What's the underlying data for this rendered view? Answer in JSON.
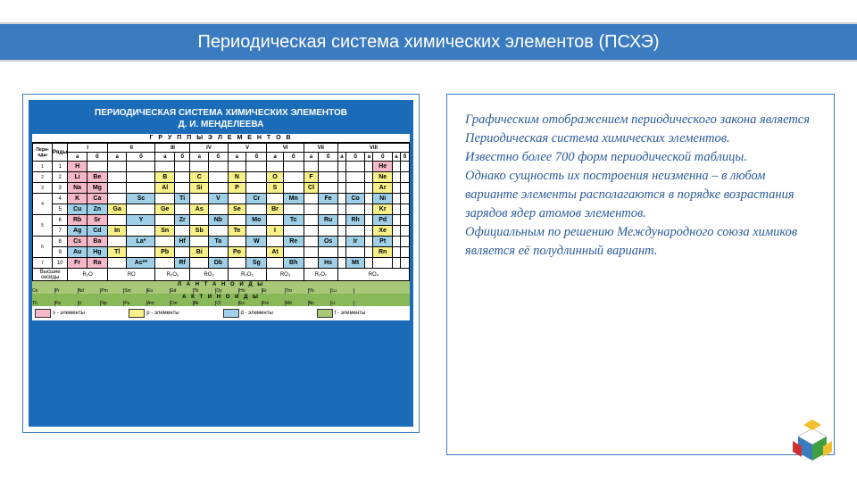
{
  "title": "Периодическая система химических элементов  (ПСХЭ)",
  "ptable": {
    "header_line1": "ПЕРИОДИЧЕСКАЯ СИСТЕМА ХИМИЧЕСКИХ ЭЛЕМЕНТОВ",
    "header_line2": "Д. И. МЕНДЕЛЕЕВА",
    "group_header": "Г Р У П П Ы   Э Л Е М Е Н Т О В",
    "period_label": "Пери-оды",
    "row_label": "Ряды",
    "groups": [
      "I",
      "II",
      "III",
      "IV",
      "V",
      "VI",
      "VII",
      "VIII"
    ],
    "sub": [
      "а",
      "б",
      "а",
      "б",
      "а",
      "б",
      "а",
      "б",
      "а",
      "б",
      "а",
      "б",
      "а",
      "б",
      "а",
      "б",
      "а",
      "б",
      "а",
      "б"
    ],
    "periods": [
      "1",
      "2",
      "3",
      "4",
      "5",
      "6",
      "7"
    ],
    "rows": [
      "1",
      "2",
      "3",
      "4",
      "5",
      "6",
      "7",
      "8",
      "9",
      "10"
    ],
    "colors": {
      "s": "#f5b8c8",
      "p": "#f8f088",
      "d": "#a0d0e8",
      "f": "#a8c878",
      "blank": "#ffffff"
    },
    "cells": [
      [
        [
          "H",
          "s"
        ],
        [
          "",
          "x"
        ],
        [
          "",
          "x"
        ],
        [
          "",
          "x"
        ],
        [
          "",
          "x"
        ],
        [
          "",
          "x"
        ],
        [
          "",
          "x"
        ],
        [
          "",
          "x"
        ],
        [
          "",
          "x"
        ],
        [
          "",
          "x"
        ],
        [
          "",
          "x"
        ],
        [
          "",
          "x"
        ],
        [
          "",
          "x"
        ],
        [
          "",
          "x"
        ],
        [
          "",
          "x"
        ],
        [
          "",
          "x"
        ],
        [
          "",
          "x"
        ],
        [
          "He",
          "s"
        ]
      ],
      [
        [
          "Li",
          "s"
        ],
        [
          "Be",
          "s"
        ],
        [
          "",
          "x"
        ],
        [
          "",
          "x"
        ],
        [
          "B",
          "p"
        ],
        [
          "",
          "x"
        ],
        [
          "C",
          "p"
        ],
        [
          "",
          "x"
        ],
        [
          "N",
          "p"
        ],
        [
          "",
          "x"
        ],
        [
          "O",
          "p"
        ],
        [
          "",
          "x"
        ],
        [
          "F",
          "p"
        ],
        [
          "",
          "x"
        ],
        [
          "",
          "x"
        ],
        [
          "",
          "x"
        ],
        [
          "",
          "x"
        ],
        [
          "Ne",
          "p"
        ]
      ],
      [
        [
          "Na",
          "s"
        ],
        [
          "Mg",
          "s"
        ],
        [
          "",
          "x"
        ],
        [
          "",
          "x"
        ],
        [
          "Al",
          "p"
        ],
        [
          "",
          "x"
        ],
        [
          "Si",
          "p"
        ],
        [
          "",
          "x"
        ],
        [
          "P",
          "p"
        ],
        [
          "",
          "x"
        ],
        [
          "S",
          "p"
        ],
        [
          "",
          "x"
        ],
        [
          "Cl",
          "p"
        ],
        [
          "",
          "x"
        ],
        [
          "",
          "x"
        ],
        [
          "",
          "x"
        ],
        [
          "",
          "x"
        ],
        [
          "Ar",
          "p"
        ]
      ],
      [
        [
          "K",
          "s"
        ],
        [
          "Ca",
          "s"
        ],
        [
          "",
          "x"
        ],
        [
          "Sc",
          "d"
        ],
        [
          "",
          "x"
        ],
        [
          "Ti",
          "d"
        ],
        [
          "",
          "x"
        ],
        [
          "V",
          "d"
        ],
        [
          "",
          "x"
        ],
        [
          "Cr",
          "d"
        ],
        [
          "",
          "x"
        ],
        [
          "Mn",
          "d"
        ],
        [
          "",
          "x"
        ],
        [
          "Fe",
          "d"
        ],
        [
          "",
          "x"
        ],
        [
          "Co",
          "d"
        ],
        [
          "",
          "x"
        ],
        [
          "Ni",
          "d"
        ]
      ],
      [
        [
          "Cu",
          "d"
        ],
        [
          "Zn",
          "d"
        ],
        [
          "Ga",
          "p"
        ],
        [
          "",
          "x"
        ],
        [
          "Ge",
          "p"
        ],
        [
          "",
          "x"
        ],
        [
          "As",
          "p"
        ],
        [
          "",
          "x"
        ],
        [
          "Se",
          "p"
        ],
        [
          "",
          "x"
        ],
        [
          "Br",
          "p"
        ],
        [
          "",
          "x"
        ],
        [
          "",
          "x"
        ],
        [
          "",
          "x"
        ],
        [
          "",
          "x"
        ],
        [
          "",
          "x"
        ],
        [
          "",
          "x"
        ],
        [
          "Kr",
          "p"
        ]
      ],
      [
        [
          "Rb",
          "s"
        ],
        [
          "Sr",
          "s"
        ],
        [
          "",
          "x"
        ],
        [
          "Y",
          "d"
        ],
        [
          "",
          "x"
        ],
        [
          "Zr",
          "d"
        ],
        [
          "",
          "x"
        ],
        [
          "Nb",
          "d"
        ],
        [
          "",
          "x"
        ],
        [
          "Mo",
          "d"
        ],
        [
          "",
          "x"
        ],
        [
          "Tc",
          "d"
        ],
        [
          "",
          "x"
        ],
        [
          "Ru",
          "d"
        ],
        [
          "",
          "x"
        ],
        [
          "Rh",
          "d"
        ],
        [
          "",
          "x"
        ],
        [
          "Pd",
          "d"
        ]
      ],
      [
        [
          "Ag",
          "d"
        ],
        [
          "Cd",
          "d"
        ],
        [
          "In",
          "p"
        ],
        [
          "",
          "x"
        ],
        [
          "Sn",
          "p"
        ],
        [
          "",
          "x"
        ],
        [
          "Sb",
          "p"
        ],
        [
          "",
          "x"
        ],
        [
          "Te",
          "p"
        ],
        [
          "",
          "x"
        ],
        [
          "I",
          "p"
        ],
        [
          "",
          "x"
        ],
        [
          "",
          "x"
        ],
        [
          "",
          "x"
        ],
        [
          "",
          "x"
        ],
        [
          "",
          "x"
        ],
        [
          "",
          "x"
        ],
        [
          "Xe",
          "p"
        ]
      ],
      [
        [
          "Cs",
          "s"
        ],
        [
          "Ba",
          "s"
        ],
        [
          "",
          "x"
        ],
        [
          "La*",
          "d"
        ],
        [
          "",
          "x"
        ],
        [
          "Hf",
          "d"
        ],
        [
          "",
          "x"
        ],
        [
          "Ta",
          "d"
        ],
        [
          "",
          "x"
        ],
        [
          "W",
          "d"
        ],
        [
          "",
          "x"
        ],
        [
          "Re",
          "d"
        ],
        [
          "",
          "x"
        ],
        [
          "Os",
          "d"
        ],
        [
          "",
          "x"
        ],
        [
          "Ir",
          "d"
        ],
        [
          "",
          "x"
        ],
        [
          "Pt",
          "d"
        ]
      ],
      [
        [
          "Au",
          "d"
        ],
        [
          "Hg",
          "d"
        ],
        [
          "Tl",
          "p"
        ],
        [
          "",
          "x"
        ],
        [
          "Pb",
          "p"
        ],
        [
          "",
          "x"
        ],
        [
          "Bi",
          "p"
        ],
        [
          "",
          "x"
        ],
        [
          "Po",
          "p"
        ],
        [
          "",
          "x"
        ],
        [
          "At",
          "p"
        ],
        [
          "",
          "x"
        ],
        [
          "",
          "x"
        ],
        [
          "",
          "x"
        ],
        [
          "",
          "x"
        ],
        [
          "",
          "x"
        ],
        [
          "",
          "x"
        ],
        [
          "Rn",
          "p"
        ]
      ],
      [
        [
          "Fr",
          "s"
        ],
        [
          "Ra",
          "s"
        ],
        [
          "",
          "x"
        ],
        [
          "Ac**",
          "d"
        ],
        [
          "",
          "x"
        ],
        [
          "Rf",
          "d"
        ],
        [
          "",
          "x"
        ],
        [
          "Db",
          "d"
        ],
        [
          "",
          "x"
        ],
        [
          "Sg",
          "d"
        ],
        [
          "",
          "x"
        ],
        [
          "Bh",
          "d"
        ],
        [
          "",
          "x"
        ],
        [
          "Hs",
          "d"
        ],
        [
          "",
          "x"
        ],
        [
          "Mt",
          "d"
        ],
        [
          "",
          "x"
        ],
        [
          "",
          "x"
        ]
      ]
    ],
    "oxides_label": "Высшие оксиды",
    "oxides": [
      "R₂O",
      "RO",
      "R₂O₃",
      "RO₂",
      "R₂O₅",
      "RO₃",
      "R₂O₇",
      "RO₄"
    ],
    "lan_label": "Л А Н Т А Н О И Д Ы",
    "lanthanides": [
      "Ce",
      "Pr",
      "Nd",
      "Pm",
      "Sm",
      "Eu",
      "Gd",
      "Tb",
      "Dy",
      "Ho",
      "Er",
      "Tm",
      "Yb",
      "Lu"
    ],
    "act_label": "А К Т И Н О И Д Ы",
    "actinides": [
      "Th",
      "Pa",
      "U",
      "Np",
      "Pu",
      "Am",
      "Cm",
      "Bk",
      "Cf",
      "Es",
      "Fm",
      "Md",
      "No",
      "Lr"
    ],
    "legend": [
      {
        "color": "#f5b8c8",
        "label": "s - элементы"
      },
      {
        "color": "#f8f088",
        "label": "р - элементы"
      },
      {
        "color": "#a0d0e8",
        "label": "d - элементы"
      },
      {
        "color": "#a8c878",
        "label": "f - элементы"
      }
    ]
  },
  "right_text": "Графическим отображением периодического закона является Периодическая система химических элементов.\nИзвестно более 700 форм периодической таблицы.\nОднако сущность их построения неизменна – в любом варианте элементы располагаются в порядке возрастания зарядов ядер атомов элементов.\n  Официальным по решению Международного союза химиков является её полудлинный вариант.",
  "cube_colors": [
    "#3b7bbf",
    "#f0c030",
    "#40a040",
    "#d03030",
    "#ffffff"
  ]
}
